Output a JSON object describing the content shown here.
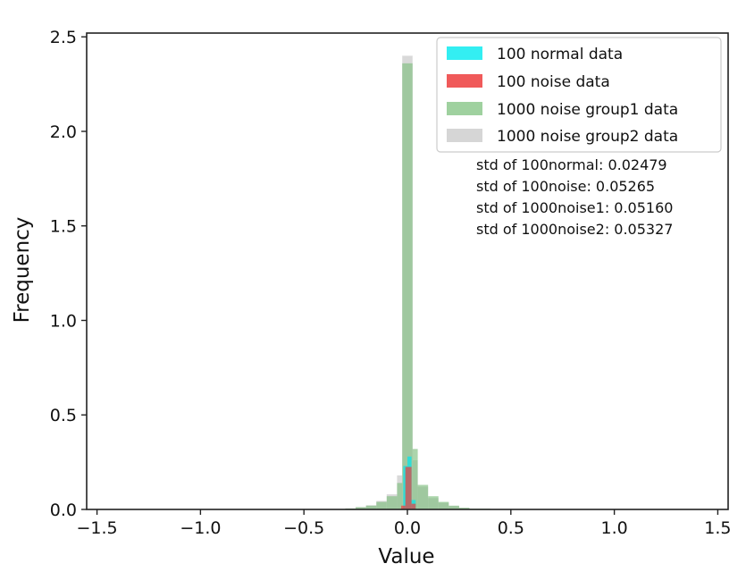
{
  "chart_data": {
    "type": "histogram",
    "title": "",
    "xlabel": "Value",
    "ylabel": "Frequency",
    "xlim": [
      -1.55,
      1.55
    ],
    "ylim": [
      0,
      2.52
    ],
    "xticks": [
      -1.5,
      -1.0,
      -0.5,
      0.0,
      0.5,
      1.0,
      1.5
    ],
    "xtick_labels": [
      "−1.5",
      "−1.0",
      "−0.5",
      "0.0",
      "0.5",
      "1.0",
      "1.5"
    ],
    "yticks": [
      0.0,
      0.5,
      1.0,
      1.5,
      2.0,
      2.5
    ],
    "ytick_labels": [
      "0.0",
      "0.5",
      "1.0",
      "1.5",
      "2.0",
      "2.5"
    ],
    "legend_position": "top-right",
    "series": [
      {
        "name": "1000 noise group2 data",
        "color": "#cccccc",
        "opacity": 0.75,
        "bins": [
          {
            "x0": -0.3,
            "x1": -0.25,
            "y": 0.005
          },
          {
            "x0": -0.25,
            "x1": -0.2,
            "y": 0.012
          },
          {
            "x0": -0.2,
            "x1": -0.15,
            "y": 0.022
          },
          {
            "x0": -0.15,
            "x1": -0.1,
            "y": 0.045
          },
          {
            "x0": -0.1,
            "x1": -0.05,
            "y": 0.08
          },
          {
            "x0": -0.05,
            "x1": -0.025,
            "y": 0.18
          },
          {
            "x0": -0.025,
            "x1": 0.025,
            "y": 2.4
          },
          {
            "x0": 0.025,
            "x1": 0.05,
            "y": 0.26
          },
          {
            "x0": 0.05,
            "x1": 0.1,
            "y": 0.12
          },
          {
            "x0": 0.1,
            "x1": 0.15,
            "y": 0.06
          },
          {
            "x0": 0.15,
            "x1": 0.2,
            "y": 0.035
          },
          {
            "x0": 0.2,
            "x1": 0.25,
            "y": 0.018
          },
          {
            "x0": 0.25,
            "x1": 0.3,
            "y": 0.008
          },
          {
            "x0": 0.3,
            "x1": 0.4,
            "y": 0.004
          }
        ]
      },
      {
        "name": "1000 noise group1 data",
        "color": "#7fbf7f",
        "opacity": 0.65,
        "bins": [
          {
            "x0": -0.3,
            "x1": -0.25,
            "y": 0.005
          },
          {
            "x0": -0.25,
            "x1": -0.2,
            "y": 0.012
          },
          {
            "x0": -0.2,
            "x1": -0.15,
            "y": 0.02
          },
          {
            "x0": -0.15,
            "x1": -0.1,
            "y": 0.04
          },
          {
            "x0": -0.1,
            "x1": -0.05,
            "y": 0.07
          },
          {
            "x0": -0.05,
            "x1": -0.025,
            "y": 0.14
          },
          {
            "x0": -0.025,
            "x1": 0.025,
            "y": 2.36
          },
          {
            "x0": 0.025,
            "x1": 0.05,
            "y": 0.32
          },
          {
            "x0": 0.05,
            "x1": 0.1,
            "y": 0.13
          },
          {
            "x0": 0.1,
            "x1": 0.15,
            "y": 0.07
          },
          {
            "x0": 0.15,
            "x1": 0.2,
            "y": 0.04
          },
          {
            "x0": 0.2,
            "x1": 0.25,
            "y": 0.02
          },
          {
            "x0": 0.25,
            "x1": 0.3,
            "y": 0.009
          },
          {
            "x0": 0.3,
            "x1": 0.4,
            "y": 0.004
          }
        ]
      },
      {
        "name": "100 normal data",
        "color": "#00e5ee",
        "opacity": 0.7,
        "bins": [
          {
            "x0": -0.02,
            "x1": 0.0,
            "y": 0.23
          },
          {
            "x0": 0.0,
            "x1": 0.02,
            "y": 0.28
          },
          {
            "x0": 0.02,
            "x1": 0.04,
            "y": 0.05
          }
        ]
      },
      {
        "name": "100 noise data",
        "color": "#ee3b3b",
        "opacity": 0.7,
        "bins": [
          {
            "x0": -0.03,
            "x1": -0.01,
            "y": 0.02
          },
          {
            "x0": -0.01,
            "x1": 0.02,
            "y": 0.225
          },
          {
            "x0": 0.02,
            "x1": 0.04,
            "y": 0.03
          }
        ]
      }
    ],
    "legend": [
      {
        "label": "100 normal data",
        "color": "#33eef2"
      },
      {
        "label": "100 noise data",
        "color": "#f05a5a"
      },
      {
        "label": "1000 noise group1 data",
        "color": "#9fd19f"
      },
      {
        "label": "1000 noise group2 data",
        "color": "#d6d6d6"
      }
    ],
    "annotations": [
      "std of 100normal: 0.02479",
      "std of 100noise: 0.05265",
      "std of 1000noise1: 0.05160",
      "std of 1000noise2: 0.05327"
    ]
  }
}
